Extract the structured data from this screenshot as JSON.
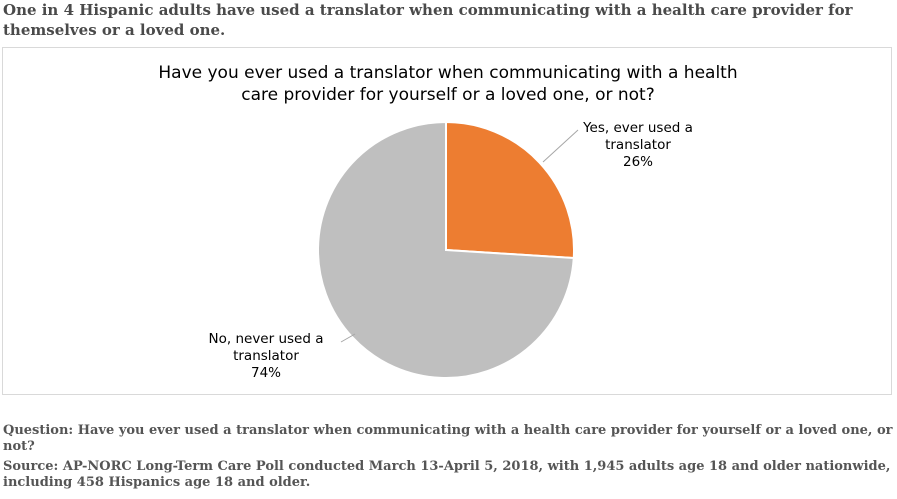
{
  "headline": "One in 4 Hispanic adults have used a translator when communicating with a health care provider for themselves or a loved one.",
  "question_note": "Question: Have you ever used a translator when communicating with a health care provider for yourself or a loved one, or not?",
  "source_note": "Source: AP-NORC Long-Term Care Poll conducted March 13-April 5, 2018, with 1,945 adults age 18 and older nationwide, including 458 Hispanics age 18 and older.",
  "chart_data": {
    "type": "pie",
    "title": "Have you ever used a translator when communicating with a health care provider for yourself or a loved one, or not?",
    "slices": [
      {
        "label": "Yes, ever used a translator",
        "value": 26,
        "display": "26%",
        "color": "#ed7d31"
      },
      {
        "label": "No, never used a translator",
        "value": 74,
        "display": "74%",
        "color": "#bfbfbf"
      }
    ],
    "start_angle_deg": 0,
    "direction": "clockwise",
    "legend": "none",
    "label_position": "outside with leader lines"
  }
}
